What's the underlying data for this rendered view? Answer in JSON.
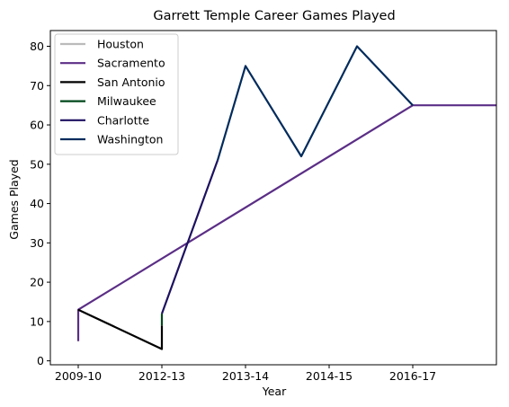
{
  "chart_data": {
    "type": "line",
    "title": "Garrett Temple Career Games Played",
    "xlabel": "Year",
    "ylabel": "Games Played",
    "xlim": [
      -0.5,
      7.5
    ],
    "ylim": [
      -1,
      84
    ],
    "yticks": [
      0,
      10,
      20,
      30,
      40,
      50,
      60,
      70,
      80
    ],
    "xticks": [
      {
        "pos": 0,
        "label": "2009-10"
      },
      {
        "pos": 1.5,
        "label": "2012-13"
      },
      {
        "pos": 3,
        "label": "2013-14"
      },
      {
        "pos": 4.5,
        "label": "2014-15"
      },
      {
        "pos": 6,
        "label": "2016-17"
      }
    ],
    "grid": false,
    "legend_position": "top-left",
    "series": [
      {
        "name": "Houston",
        "color": "#bbbbbb",
        "points": [
          [
            0,
            13
          ],
          [
            0,
            13
          ]
        ]
      },
      {
        "name": "Sacramento",
        "color": "#5b2e86",
        "points": [
          [
            0,
            5
          ],
          [
            0,
            13
          ],
          [
            6,
            65
          ],
          [
            7.5,
            65
          ]
        ]
      },
      {
        "name": "San Antonio",
        "color": "#000000",
        "points": [
          [
            0,
            13
          ],
          [
            1.5,
            3
          ],
          [
            1.5,
            9
          ]
        ]
      },
      {
        "name": "Milwaukee",
        "color": "#00471b",
        "points": [
          [
            1.5,
            9
          ],
          [
            1.5,
            12
          ]
        ]
      },
      {
        "name": "Charlotte",
        "color": "#1d1160",
        "points": [
          [
            1.5,
            12
          ],
          [
            2.5,
            51
          ]
        ]
      },
      {
        "name": "Washington",
        "color": "#002b5c",
        "points": [
          [
            2.5,
            51
          ],
          [
            3,
            75
          ],
          [
            4,
            52
          ],
          [
            5,
            80
          ],
          [
            6,
            65
          ]
        ]
      }
    ]
  }
}
